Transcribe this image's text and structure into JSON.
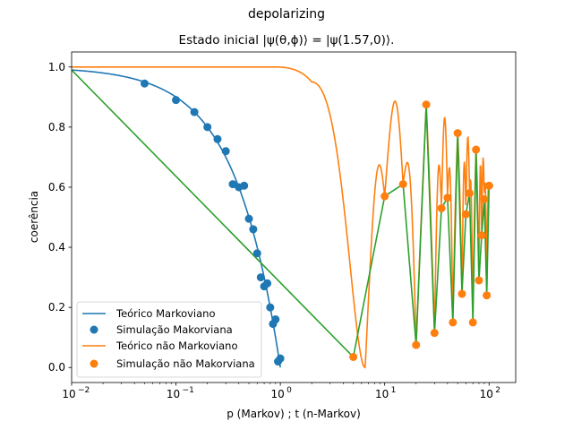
{
  "chart_data": {
    "type": "line",
    "suptitle": "depolarizing",
    "title": "Estado inicial |ψ(θ,ϕ)⟩ = |ψ(1.57,0)⟩.",
    "xlabel": "p (Markov) ; t (n-Markov)",
    "ylabel": "coerência",
    "xscale": "log",
    "xlim": [
      0.01,
      180
    ],
    "ylim": [
      -0.05,
      1.05
    ],
    "xticks": [
      0.01,
      0.1,
      1,
      10,
      100
    ],
    "xtick_labels": [
      {
        "base": "10",
        "exp": "−2"
      },
      {
        "base": "10",
        "exp": "−1"
      },
      {
        "base": "10",
        "exp": "0"
      },
      {
        "base": "10",
        "exp": "1"
      },
      {
        "base": "10",
        "exp": "2"
      }
    ],
    "yticks": [
      0.0,
      0.2,
      0.4,
      0.6,
      0.8,
      1.0
    ],
    "ytick_labels": [
      "0.0",
      "0.2",
      "0.4",
      "0.6",
      "0.8",
      "1.0"
    ],
    "colors": {
      "markov": "#1f77b4",
      "nonmarkov": "#ff7f0e",
      "connector": "#2ca02c"
    },
    "legend_position": "lower-left",
    "legend": [
      "Teórico Markoviano",
      "Simulação Makorviana",
      "Teórico não Markoviano",
      "Simulação não Makorviana"
    ],
    "series": [
      {
        "name": "Teórico Markoviano",
        "kind": "line",
        "color": "#1f77b4",
        "formula": "1 - p"
      },
      {
        "name": "Simulação Makorviana",
        "kind": "scatter",
        "color": "#1f77b4",
        "x": [
          0.05,
          0.1,
          0.15,
          0.2,
          0.25,
          0.3,
          0.35,
          0.4,
          0.45,
          0.5,
          0.55,
          0.6,
          0.65,
          0.7,
          0.75,
          0.8,
          0.85,
          0.9,
          0.95,
          1.0
        ],
        "y": [
          0.945,
          0.89,
          0.85,
          0.8,
          0.76,
          0.72,
          0.61,
          0.6,
          0.605,
          0.495,
          0.46,
          0.38,
          0.3,
          0.27,
          0.28,
          0.2,
          0.145,
          0.16,
          0.02,
          0.03
        ]
      },
      {
        "name": "Teórico não Markoviano",
        "kind": "line",
        "color": "#ff7f0e",
        "formula": "coherence(t) = |cos(0.7 t / 4.17)| * exp(-0.25 (t/4.17)^2) style oscillating non-Markovian decay"
      },
      {
        "name": "Simulação não Makorviana",
        "kind": "scatter",
        "color": "#ff7f0e",
        "x": [
          5,
          10,
          15,
          20,
          25,
          30,
          35,
          40,
          45,
          50,
          55,
          60,
          65,
          70,
          75,
          80,
          85,
          90,
          95,
          100
        ],
        "y": [
          0.035,
          0.57,
          0.61,
          0.075,
          0.875,
          0.115,
          0.53,
          0.565,
          0.15,
          0.78,
          0.245,
          0.51,
          0.58,
          0.15,
          0.725,
          0.29,
          0.44,
          0.56,
          0.24,
          0.605
        ]
      },
      {
        "name": "",
        "kind": "line",
        "color": "#2ca02c",
        "x": [
          0.01,
          5,
          10,
          15,
          20,
          25,
          30,
          35,
          40,
          45,
          50,
          55,
          60,
          65,
          70,
          75,
          80,
          85,
          90,
          95,
          100
        ],
        "y": [
          0.99,
          0.035,
          0.57,
          0.61,
          0.075,
          0.875,
          0.115,
          0.53,
          0.565,
          0.15,
          0.78,
          0.245,
          0.51,
          0.58,
          0.15,
          0.725,
          0.29,
          0.44,
          0.56,
          0.24,
          0.605
        ]
      }
    ]
  }
}
